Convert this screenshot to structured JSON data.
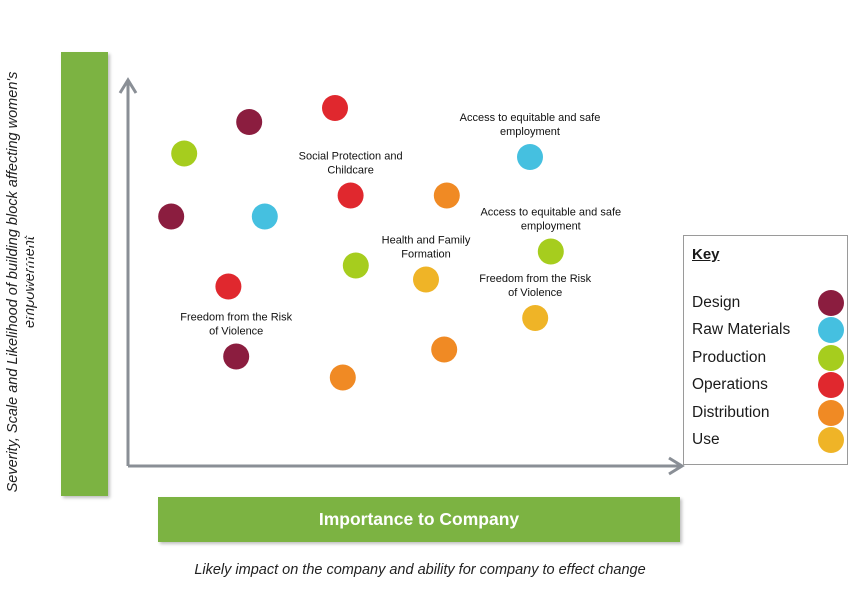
{
  "y_axis_note": "Severity, Scale and Likelihood of building block affecting women's empowerment",
  "y_axis_title": "Importance to  Women’s Empowerment",
  "x_axis_title": "Importance to Company",
  "x_axis_note": "Likely impact on the company and ability for company to effect change",
  "key": {
    "title": "Key",
    "items": [
      {
        "label": "Design",
        "color": "#8b1d3f"
      },
      {
        "label": "Raw Materials",
        "color": "#45c0e0"
      },
      {
        "label": "Production",
        "color": "#a6cd1e"
      },
      {
        "label": "Operations",
        "color": "#e0282e"
      },
      {
        "label": "Distribution",
        "color": "#f08a24"
      },
      {
        "label": "Use",
        "color": "#efb427"
      }
    ]
  },
  "chart_data": {
    "type": "scatter",
    "xlim": [
      0,
      100
    ],
    "ylim": [
      0,
      100
    ],
    "points": [
      {
        "x": 8.5,
        "y": 79,
        "category": "Production"
      },
      {
        "x": 21,
        "y": 88,
        "category": "Design"
      },
      {
        "x": 37.5,
        "y": 92,
        "category": "Operations"
      },
      {
        "x": 6,
        "y": 61,
        "category": "Design"
      },
      {
        "x": 24,
        "y": 61,
        "category": "Raw Materials"
      },
      {
        "x": 40.5,
        "y": 67,
        "category": "Operations",
        "label": [
          "Social Protection and",
          "Childcare"
        ]
      },
      {
        "x": 59,
        "y": 67,
        "category": "Distribution"
      },
      {
        "x": 75,
        "y": 78,
        "category": "Raw Materials",
        "label": [
          "Access to equitable and safe",
          "employment"
        ]
      },
      {
        "x": 17,
        "y": 41,
        "category": "Operations"
      },
      {
        "x": 41.5,
        "y": 47,
        "category": "Production"
      },
      {
        "x": 55,
        "y": 43,
        "category": "Use",
        "label": [
          "Health and Family",
          "Formation"
        ]
      },
      {
        "x": 79,
        "y": 51,
        "category": "Production",
        "label": [
          "Access to equitable and safe",
          "employment"
        ]
      },
      {
        "x": 76,
        "y": 32,
        "category": "Use",
        "label": [
          "Freedom from the Risk",
          "of Violence"
        ]
      },
      {
        "x": 18.5,
        "y": 21,
        "category": "Design",
        "label": [
          "Freedom from the Risk",
          "of Violence"
        ]
      },
      {
        "x": 58.5,
        "y": 23,
        "category": "Distribution"
      },
      {
        "x": 39,
        "y": 15,
        "category": "Distribution"
      }
    ]
  }
}
